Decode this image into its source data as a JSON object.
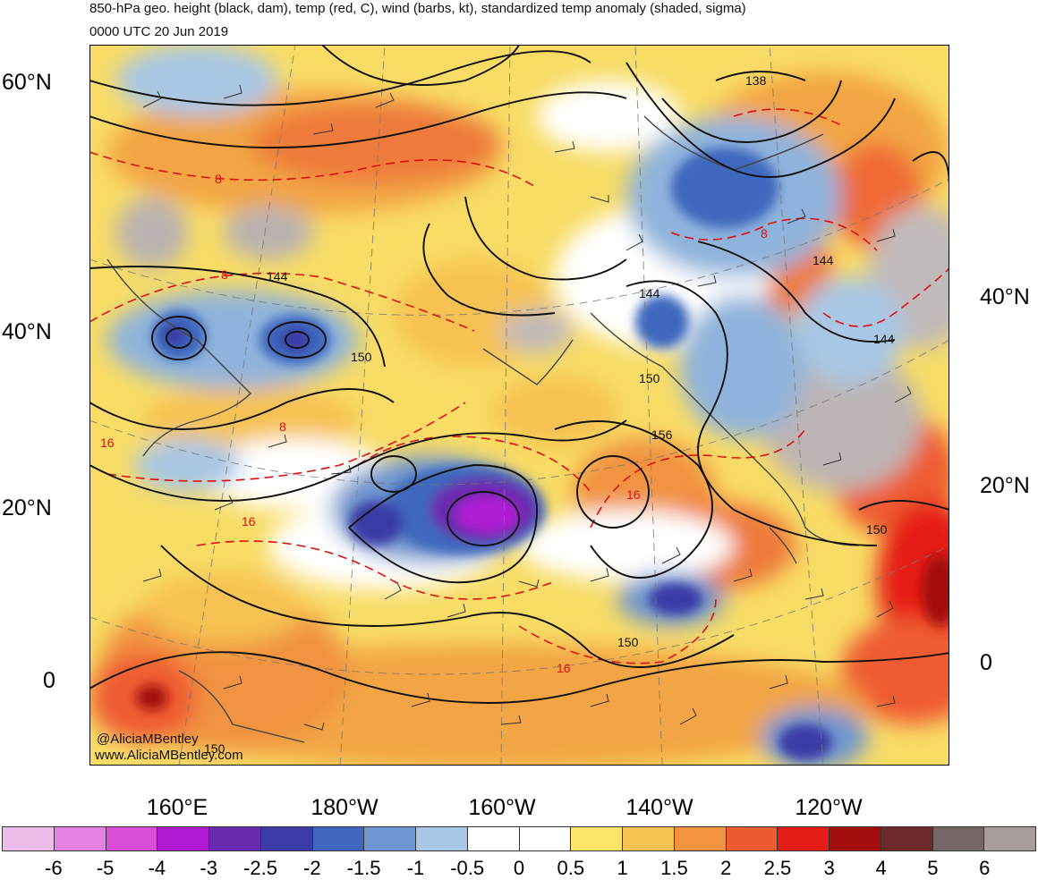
{
  "title_line1": "850-hPa geo. height (black, dam), temp (red, C), wind (barbs, kt), standardized temp anomaly (shaded, sigma)",
  "title_line2": "0000 UTC 20 Jun 2019",
  "lat_labels_left": [
    {
      "id": "lat-60n",
      "text": "60°N"
    },
    {
      "id": "lat-40n-left",
      "text": "40°N"
    },
    {
      "id": "lat-20n-left",
      "text": "20°N"
    },
    {
      "id": "lat-0-left",
      "text": "0"
    }
  ],
  "lat_labels_right": [
    {
      "id": "lat-40n-right",
      "text": "40°N"
    },
    {
      "id": "lat-20n-right",
      "text": "20°N"
    },
    {
      "id": "lat-0-right",
      "text": "0"
    }
  ],
  "lon_labels": [
    {
      "id": "lon-160e",
      "text": "160°E"
    },
    {
      "id": "lon-180w",
      "text": "180°W"
    },
    {
      "id": "lon-160w",
      "text": "160°W"
    },
    {
      "id": "lon-140w",
      "text": "140°W"
    },
    {
      "id": "lon-120w",
      "text": "120°W"
    }
  ],
  "contour_labels": {
    "height": [
      "138",
      "144",
      "144",
      "144",
      "144",
      "150",
      "150",
      "150",
      "150",
      "156",
      "150"
    ],
    "temp": [
      "8",
      "8",
      "8",
      "8",
      "16",
      "16",
      "16",
      "16"
    ]
  },
  "watermark": [
    "@AliciaMBentley",
    "www.AliciaMBentley.com"
  ],
  "colorbar": {
    "colors": [
      "#ecbde9",
      "#e680e2",
      "#d94ed6",
      "#b01ad2",
      "#6a2ab0",
      "#3b3aa6",
      "#3e67bd",
      "#6e95cf",
      "#a8c7e5",
      "#ffffff",
      "#ffffff",
      "#fbe468",
      "#f6c252",
      "#f1933f",
      "#ef5b31",
      "#e51d18",
      "#a30f0f",
      "#6e2a2a",
      "#746765",
      "#a99d9c"
    ],
    "labels": [
      "-6",
      "-5",
      "-4",
      "-3",
      "-2.5",
      "-2",
      "-1.5",
      "-1",
      "-0.5",
      "0",
      "0.5",
      "1",
      "1.5",
      "2",
      "2.5",
      "3",
      "4",
      "5",
      "6"
    ]
  }
}
